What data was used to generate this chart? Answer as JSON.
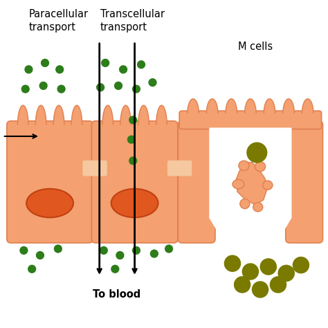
{
  "bg_color": "#ffffff",
  "cell_fill": "#F4A070",
  "cell_edge": "#E08050",
  "nucleus_fill": "#E05820",
  "nucleus_edge": "#C04010",
  "tight_junction_fill": "#F5C8A0",
  "green_dot_color": "#2D7D1A",
  "olive_dot_color": "#7A7A00",
  "arrow_color": "#000000",
  "text_color": "#000000",
  "title1": "Paracellular\ntransport",
  "title2": "Transcellular\ntransport",
  "title3": "M cells",
  "label_blood": "To blood",
  "figsize": [
    4.74,
    4.74
  ],
  "dpi": 100
}
